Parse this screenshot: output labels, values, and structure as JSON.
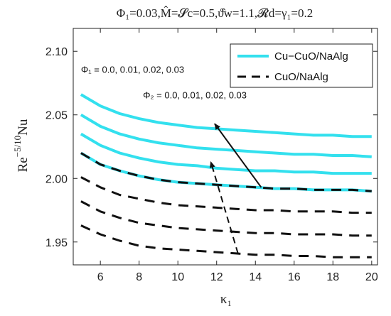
{
  "chart_data": {
    "type": "line",
    "title": "Φ₁=0.03,M̂=𝓢c=0.5,ϑ̂w=1.1,𝓡d=γ₁=0.2",
    "xlabel": "κ₁",
    "ylabel": "Re^(-5/10) Nu",
    "xlim": [
      4.6,
      20.3
    ],
    "ylim": [
      1.932,
      2.118
    ],
    "xticks": [
      6,
      8,
      10,
      12,
      14,
      16,
      18,
      20
    ],
    "yticks": [
      1.95,
      2.0,
      2.05,
      2.1
    ],
    "xtick_labels": [
      "6",
      "8",
      "10",
      "12",
      "14",
      "16",
      "18",
      "20"
    ],
    "ytick_labels": [
      "1.95",
      "2.00",
      "2.05",
      "2.10"
    ],
    "x": [
      5,
      6,
      7,
      8,
      9,
      10,
      11,
      12,
      13,
      14,
      15,
      16,
      17,
      18,
      19,
      20
    ],
    "series": [
      {
        "name": "Cu−CuO/NaAlg",
        "style": "solid",
        "color": "#33e0ee",
        "values": [
          2.066,
          2.057,
          2.051,
          2.047,
          2.044,
          2.042,
          2.04,
          2.039,
          2.038,
          2.037,
          2.036,
          2.035,
          2.034,
          2.034,
          2.033,
          2.033
        ]
      },
      {
        "style": "solid",
        "color": "#33e0ee",
        "values": [
          2.05,
          2.041,
          2.035,
          2.031,
          2.028,
          2.026,
          2.024,
          2.023,
          2.022,
          2.021,
          2.02,
          2.019,
          2.019,
          2.018,
          2.018,
          2.017
        ]
      },
      {
        "style": "solid",
        "color": "#33e0ee",
        "values": [
          2.035,
          2.026,
          2.02,
          2.016,
          2.013,
          2.011,
          2.01,
          2.008,
          2.007,
          2.006,
          2.006,
          2.005,
          2.005,
          2.004,
          2.004,
          2.004
        ]
      },
      {
        "style": "solid",
        "color": "#33e0ee",
        "values": [
          2.02,
          2.011,
          2.006,
          2.002,
          1.999,
          1.997,
          1.996,
          1.995,
          1.994,
          1.993,
          1.992,
          1.992,
          1.991,
          1.991,
          1.991,
          1.99
        ]
      },
      {
        "name": "CuO/NaAlg",
        "style": "dashed",
        "color": "#111111",
        "values": [
          2.02,
          2.011,
          2.006,
          2.002,
          1.999,
          1.997,
          1.996,
          1.995,
          1.994,
          1.993,
          1.992,
          1.992,
          1.991,
          1.991,
          1.991,
          1.99
        ]
      },
      {
        "style": "dashed",
        "color": "#111111",
        "values": [
          2.001,
          1.993,
          1.987,
          1.984,
          1.981,
          1.979,
          1.978,
          1.977,
          1.976,
          1.975,
          1.975,
          1.974,
          1.974,
          1.974,
          1.973,
          1.973
        ]
      },
      {
        "style": "dashed",
        "color": "#111111",
        "values": [
          1.982,
          1.974,
          1.969,
          1.965,
          1.963,
          1.961,
          1.96,
          1.959,
          1.958,
          1.957,
          1.957,
          1.956,
          1.956,
          1.956,
          1.955,
          1.955
        ]
      },
      {
        "style": "dashed",
        "color": "#111111",
        "values": [
          1.963,
          1.956,
          1.951,
          1.947,
          1.945,
          1.944,
          1.943,
          1.942,
          1.941,
          1.94,
          1.94,
          1.939,
          1.939,
          1.938,
          1.938,
          1.938
        ]
      }
    ],
    "annotations": [
      {
        "text": "Φ₁ = 0.0, 0.01, 0.02, 0.03",
        "at": [
          5.0,
          2.083
        ]
      },
      {
        "text": "Φ₂ = 0.0, 0.01, 0.02, 0.03",
        "at": [
          8.2,
          2.063
        ]
      }
    ],
    "arrows": [
      {
        "style": "solid",
        "from": [
          14.3,
          1.993
        ],
        "to": [
          11.9,
          2.043
        ]
      },
      {
        "style": "dashed",
        "from": [
          13.1,
          1.941
        ],
        "to": [
          11.7,
          2.013
        ]
      }
    ],
    "legend": {
      "placement": "top-right",
      "entries": [
        "Cu−CuO/NaAlg",
        "CuO/NaAlg"
      ]
    },
    "grid": false
  }
}
